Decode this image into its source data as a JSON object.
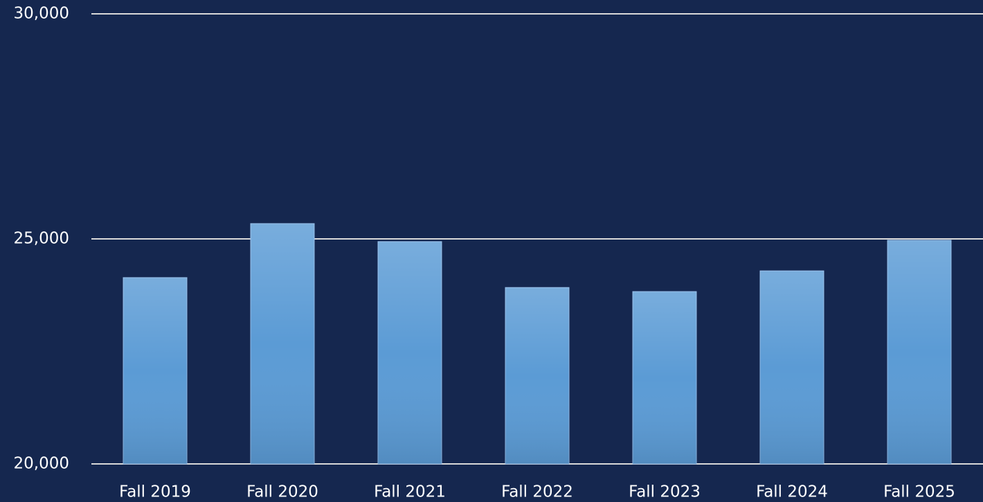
{
  "chart_data": {
    "type": "bar",
    "categories": [
      "Fall 2019",
      "Fall 2020",
      "Fall 2021",
      "Fall 2022",
      "Fall 2023",
      "Fall 2024",
      "Fall 2025"
    ],
    "values": [
      24140,
      25340,
      24940,
      23920,
      23830,
      24290,
      24970
    ],
    "color": "#5b9bd5",
    "ylim": [
      20000,
      30000
    ],
    "yticks": [
      {
        "value": 20000,
        "label": "20,000"
      },
      {
        "value": 25000,
        "label": "25,000"
      },
      {
        "value": 30000,
        "label": "30,000"
      }
    ],
    "grid": true
  }
}
